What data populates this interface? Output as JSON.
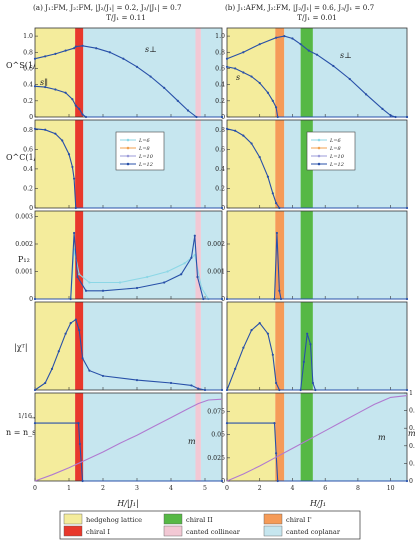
{
  "chart_data": {
    "type": "line",
    "titles": {
      "left_line1": "(a) J₁:FM, J₂:FM, |J₂/J₁| = 0.2, J₃/|J₁| = 0.7",
      "left_line2": "T/J₁ = 0.11",
      "right_line1": "(b) J₁:AFM, J₂:FM, |J₂/J₁| = 0.6, J₃/J₁ = 0.7",
      "right_line2": "T/J₁ = 0.01"
    },
    "xlabels": {
      "left": "H/|J₁|",
      "right": "H/J₁"
    },
    "ylabels": [
      "O^S(1/2 1/2 1/2)",
      "O^C(1/2 1/2 1/2)",
      "P₁₂",
      "|χᵀ|",
      "n = n_s"
    ],
    "right_axis_label": "m",
    "left_xticks": [
      "0",
      "1",
      "2",
      "3",
      "4",
      "5"
    ],
    "right_xticks": [
      "0",
      "2",
      "4",
      "6",
      "8",
      "10"
    ],
    "y_ticks": {
      "row1": [
        "0",
        "0.2",
        "0.4",
        "0.6",
        "0.8",
        "1.0"
      ],
      "row2": [
        "0",
        "0.2",
        "0.4",
        "0.6",
        "0.8"
      ],
      "row3_left": [
        "0",
        "0.001",
        "0.002",
        "0.003"
      ],
      "row3_right": [
        "0",
        "0.001",
        "0.002"
      ],
      "row5_right": [
        "0",
        "0.025",
        "0.05",
        "0.075"
      ],
      "row5_right_axis": [
        "0",
        "0.2",
        "0.4",
        "0.6",
        "0.8",
        "1"
      ]
    },
    "n_marker_label": "1/16",
    "annotations": {
      "s_perp": "s⊥",
      "s_par": "s∥",
      "s": "s",
      "m": "m"
    },
    "legend": [
      "L=6",
      "L=8",
      "L=10",
      "L=12"
    ],
    "legend_colors": [
      "#8cd7e6",
      "#f0a050",
      "#9b9bd8",
      "#2850a8"
    ],
    "phase_legend": [
      {
        "label": "hedgehog lattice",
        "color": "#f4ec9c"
      },
      {
        "label": "chiral I",
        "color": "#e8382c"
      },
      {
        "label": "chiral II",
        "color": "#56b845"
      },
      {
        "label": "canted collinear",
        "color": "#f2c8d4"
      },
      {
        "label": "chiral I'",
        "color": "#f59b58"
      },
      {
        "label": "canted coplanar",
        "color": "#c6e6ef"
      }
    ],
    "left_xrange": [
      0,
      5.5
    ],
    "right_xrange": [
      0,
      11
    ],
    "left_regions": [
      {
        "phase": "hedgehog lattice",
        "from": 0,
        "to": 1.18
      },
      {
        "phase": "chiral I",
        "from": 1.18,
        "to": 1.42
      },
      {
        "phase": "canted coplanar",
        "from": 1.42,
        "to": 4.72
      },
      {
        "phase": "canted collinear",
        "from": 4.72,
        "to": 4.88
      },
      {
        "phase": "canted coplanar",
        "from": 4.88,
        "to": 5.5
      }
    ],
    "right_regions": [
      {
        "phase": "hedgehog lattice",
        "from": 0,
        "to": 2.95
      },
      {
        "phase": "chiral I'",
        "from": 2.95,
        "to": 3.5
      },
      {
        "phase": "canted coplanar",
        "from": 3.5,
        "to": 4.5
      },
      {
        "phase": "chiral II",
        "from": 4.5,
        "to": 5.25
      },
      {
        "phase": "canted coplanar",
        "from": 5.25,
        "to": 11
      }
    ],
    "panels": {
      "a1_s_perp": [
        [
          0,
          0.72
        ],
        [
          0.3,
          0.75
        ],
        [
          0.6,
          0.78
        ],
        [
          0.9,
          0.82
        ],
        [
          1.15,
          0.85
        ],
        [
          1.2,
          0.87
        ],
        [
          1.4,
          0.88
        ],
        [
          1.8,
          0.85
        ],
        [
          2.2,
          0.8
        ],
        [
          2.6,
          0.72
        ],
        [
          3,
          0.62
        ],
        [
          3.4,
          0.5
        ],
        [
          3.8,
          0.36
        ],
        [
          4.2,
          0.2
        ],
        [
          4.5,
          0.08
        ],
        [
          4.75,
          0
        ],
        [
          5.5,
          0
        ]
      ],
      "a1_s_par": [
        [
          0,
          0.38
        ],
        [
          0.3,
          0.37
        ],
        [
          0.6,
          0.34
        ],
        [
          0.9,
          0.3
        ],
        [
          1.1,
          0.22
        ],
        [
          1.2,
          0.14
        ],
        [
          1.3,
          0.1
        ],
        [
          1.4,
          0.03
        ],
        [
          1.5,
          0
        ],
        [
          5.5,
          0
        ]
      ],
      "a2": [
        [
          0,
          0.81
        ],
        [
          0.3,
          0.8
        ],
        [
          0.6,
          0.76
        ],
        [
          0.8,
          0.69
        ],
        [
          1.0,
          0.55
        ],
        [
          1.1,
          0.42
        ],
        [
          1.15,
          0.3
        ],
        [
          1.2,
          0
        ],
        [
          5.5,
          0
        ]
      ],
      "a3_L12": [
        [
          0,
          0
        ],
        [
          1.05,
          0
        ],
        [
          1.15,
          0.0024
        ],
        [
          1.25,
          0.0008
        ],
        [
          1.5,
          0.0003
        ],
        [
          2,
          0.0003
        ],
        [
          3,
          0.0004
        ],
        [
          3.8,
          0.0006
        ],
        [
          4.3,
          0.0009
        ],
        [
          4.6,
          0.0015
        ],
        [
          4.7,
          0.0023
        ],
        [
          4.78,
          0.0008
        ],
        [
          4.95,
          0
        ],
        [
          5.5,
          0
        ]
      ],
      "a3_L6": [
        [
          0,
          0
        ],
        [
          1.05,
          0
        ],
        [
          1.15,
          0.0018
        ],
        [
          1.3,
          0.0009
        ],
        [
          1.6,
          0.0006
        ],
        [
          2.5,
          0.0006
        ],
        [
          3.3,
          0.0008
        ],
        [
          3.9,
          0.001
        ],
        [
          4.4,
          0.0013
        ],
        [
          4.7,
          0.0016
        ],
        [
          4.9,
          0.0004
        ],
        [
          5.1,
          0
        ],
        [
          5.5,
          0
        ]
      ],
      "a4": [
        [
          0,
          0
        ],
        [
          0.3,
          0.02
        ],
        [
          0.5,
          0.06
        ],
        [
          0.7,
          0.11
        ],
        [
          0.9,
          0.16
        ],
        [
          1.05,
          0.19
        ],
        [
          1.2,
          0.2
        ],
        [
          1.3,
          0.17
        ],
        [
          1.4,
          0.09
        ],
        [
          1.6,
          0.055
        ],
        [
          2,
          0.04
        ],
        [
          3,
          0.028
        ],
        [
          4,
          0.02
        ],
        [
          4.6,
          0.013
        ],
        [
          4.8,
          0.004
        ],
        [
          5,
          0
        ],
        [
          5.5,
          0
        ]
      ],
      "a5_n": [
        [
          0,
          0.0625
        ],
        [
          1.28,
          0.0625
        ],
        [
          1.32,
          0.04
        ],
        [
          1.4,
          0
        ],
        [
          5.5,
          0
        ]
      ],
      "a5_m": [
        [
          0,
          0
        ],
        [
          0.5,
          0.07
        ],
        [
          1,
          0.15
        ],
        [
          1.5,
          0.24
        ],
        [
          2,
          0.33
        ],
        [
          2.5,
          0.43
        ],
        [
          3,
          0.52
        ],
        [
          3.5,
          0.62
        ],
        [
          4,
          0.72
        ],
        [
          4.5,
          0.82
        ],
        [
          4.8,
          0.88
        ],
        [
          5.1,
          0.92
        ],
        [
          5.5,
          0.93
        ]
      ],
      "b1_s_perp": [
        [
          0,
          0.72
        ],
        [
          1,
          0.8
        ],
        [
          2,
          0.9
        ],
        [
          3,
          0.98
        ],
        [
          3.5,
          1
        ],
        [
          4,
          0.97
        ],
        [
          4.5,
          0.9
        ],
        [
          5,
          0.82
        ],
        [
          5.5,
          0.77
        ],
        [
          6.5,
          0.63
        ],
        [
          7.5,
          0.47
        ],
        [
          8.5,
          0.28
        ],
        [
          9.5,
          0.1
        ],
        [
          10,
          0.02
        ],
        [
          10.3,
          0
        ],
        [
          11,
          0
        ]
      ],
      "b1_s": [
        [
          0,
          0.62
        ],
        [
          0.5,
          0.6
        ],
        [
          1,
          0.55
        ],
        [
          1.5,
          0.5
        ],
        [
          2,
          0.42
        ],
        [
          2.5,
          0.3
        ],
        [
          2.8,
          0.2
        ],
        [
          3,
          0.12
        ],
        [
          3.1,
          0
        ],
        [
          11,
          0
        ]
      ],
      "b2": [
        [
          0,
          0.81
        ],
        [
          0.5,
          0.79
        ],
        [
          1,
          0.74
        ],
        [
          1.5,
          0.66
        ],
        [
          2,
          0.52
        ],
        [
          2.5,
          0.32
        ],
        [
          2.8,
          0.15
        ],
        [
          3,
          0.05
        ],
        [
          3.2,
          0
        ],
        [
          11,
          0
        ]
      ],
      "b3": [
        [
          0,
          0
        ],
        [
          2.9,
          0
        ],
        [
          3.05,
          0.0024
        ],
        [
          3.2,
          0.0003
        ],
        [
          3.3,
          0
        ],
        [
          11,
          0
        ]
      ],
      "b4": [
        [
          0,
          0
        ],
        [
          0.5,
          0.06
        ],
        [
          1,
          0.12
        ],
        [
          1.5,
          0.17
        ],
        [
          2,
          0.19
        ],
        [
          2.5,
          0.16
        ],
        [
          2.8,
          0.1
        ],
        [
          3,
          0.02
        ],
        [
          3.2,
          0
        ],
        [
          4.5,
          0
        ],
        [
          4.7,
          0.08
        ],
        [
          4.9,
          0.16
        ],
        [
          5.1,
          0.13
        ],
        [
          5.25,
          0.02
        ],
        [
          5.4,
          0
        ],
        [
          11,
          0
        ]
      ],
      "b5_n": [
        [
          0,
          0.0625
        ],
        [
          2.9,
          0.0625
        ],
        [
          3,
          0.03
        ],
        [
          3.1,
          0
        ],
        [
          11,
          0
        ]
      ],
      "b5_m": [
        [
          0,
          0
        ],
        [
          1,
          0.08
        ],
        [
          2,
          0.17
        ],
        [
          3,
          0.27
        ],
        [
          4,
          0.37
        ],
        [
          5,
          0.47
        ],
        [
          6,
          0.57
        ],
        [
          7,
          0.67
        ],
        [
          8,
          0.77
        ],
        [
          9,
          0.87
        ],
        [
          10,
          0.95
        ],
        [
          11,
          0.97
        ]
      ]
    }
  }
}
